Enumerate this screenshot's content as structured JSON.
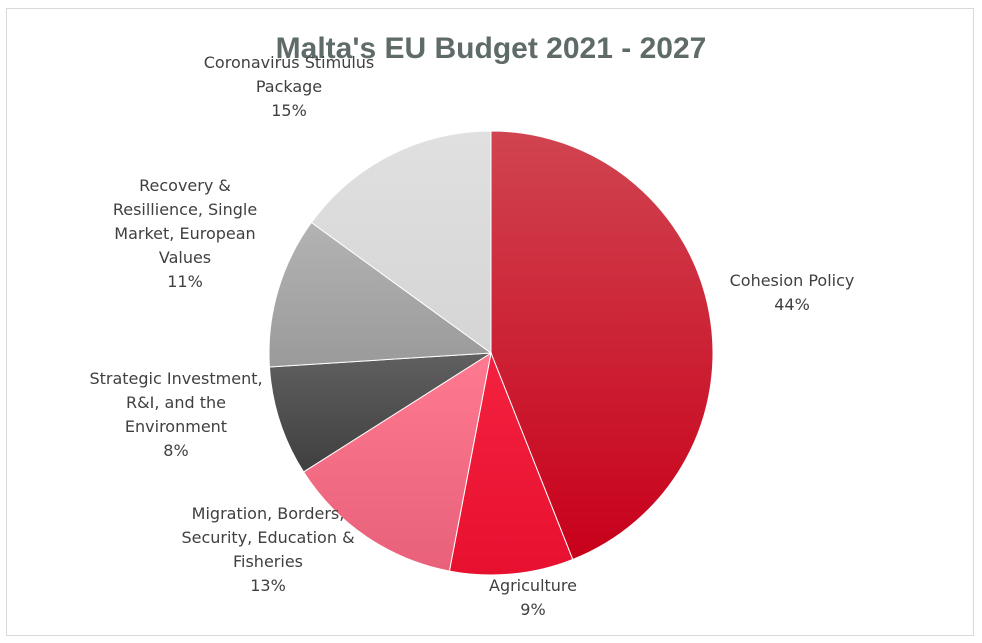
{
  "chart_data": {
    "type": "pie",
    "title": "Malta's EU Budget 2021 - 2027",
    "slices": [
      {
        "label_lines": [
          "Cohesion Policy"
        ],
        "value": 44,
        "value_label": "44%",
        "color": "#c8001a",
        "color_light": "#d04450"
      },
      {
        "label_lines": [
          "Agriculture"
        ],
        "value": 9,
        "value_label": "9%",
        "color": "#e8102f",
        "color_light": "#f3213f"
      },
      {
        "label_lines": [
          "Migration, Borders,",
          "Security, Education &",
          "Fisheries"
        ],
        "value": 13,
        "value_label": "13%",
        "color": "#e8607a",
        "color_light": "#ff7a90"
      },
      {
        "label_lines": [
          "Strategic Investment,",
          "R&I, and the",
          "Environment"
        ],
        "value": 8,
        "value_label": "8%",
        "color": "#3f3f3f",
        "color_light": "#606060"
      },
      {
        "label_lines": [
          "Recovery &",
          "Resillience, Single",
          "Market, European",
          "Values"
        ],
        "value": 11,
        "value_label": "11%",
        "color": "#9a9a9a",
        "color_light": "#b3b3b3"
      },
      {
        "label_lines": [
          "Coronavirus Stimulus",
          "Package"
        ],
        "value": 15,
        "value_label": "15%",
        "color": "#d5d5d5",
        "color_light": "#e0e0e0"
      }
    ]
  }
}
